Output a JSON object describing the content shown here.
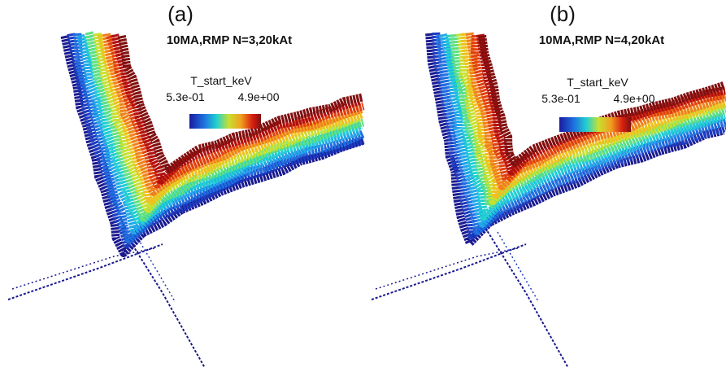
{
  "panels": [
    {
      "label": "(a)",
      "title": "10MA,RMP N=3,20kAt",
      "colorbar": {
        "title": "T_start_keV",
        "min": "5.3e-01",
        "max": "4.9e+00"
      }
    },
    {
      "label": "(b)",
      "title": "10MA,RMP N=4,20kAt",
      "colorbar": {
        "title": "T_start_keV",
        "min": "5.3e-01",
        "max": "4.9e+00"
      }
    }
  ]
}
